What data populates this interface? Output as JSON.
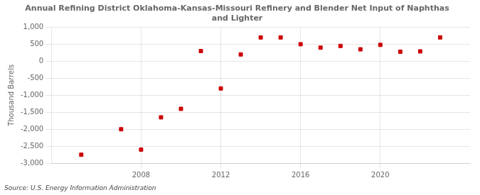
{
  "chart_data": {
    "type": "scatter",
    "title": "Annual Refining District Oklahoma-Kansas-Missouri Refinery and Blender Net Input of Naphthas\nand Lighter",
    "ylabel": "Thousand Barrels",
    "annotations": [
      "Source: U.S. Energy Information Administration"
    ],
    "x": [
      2005,
      2007,
      2008,
      2009,
      2010,
      2011,
      2012,
      2013,
      2014,
      2015,
      2016,
      2017,
      2018,
      2019,
      2020,
      2021,
      2022,
      2023
    ],
    "values": [
      -2750,
      -2000,
      -2600,
      -1650,
      -1400,
      300,
      -800,
      200,
      700,
      700,
      500,
      400,
      450,
      350,
      480,
      280,
      290,
      700
    ],
    "color": "#cc0000",
    "marker": "square",
    "xlim": [
      2003.5,
      2024.5
    ],
    "xticks": [
      2008,
      2012,
      2016,
      2020
    ],
    "ylim": [
      -3000,
      1000
    ],
    "yticks": [
      {
        "value": -3000,
        "label": "-3,000"
      },
      {
        "value": -2500,
        "label": "-2,500"
      },
      {
        "value": -2000,
        "label": "-2,000"
      },
      {
        "value": -1500,
        "label": "-1,500"
      },
      {
        "value": -1000,
        "label": "-1,000"
      },
      -500,
      0,
      500,
      {
        "value": 1000,
        "label": "1,000"
      }
    ],
    "grid": true
  }
}
